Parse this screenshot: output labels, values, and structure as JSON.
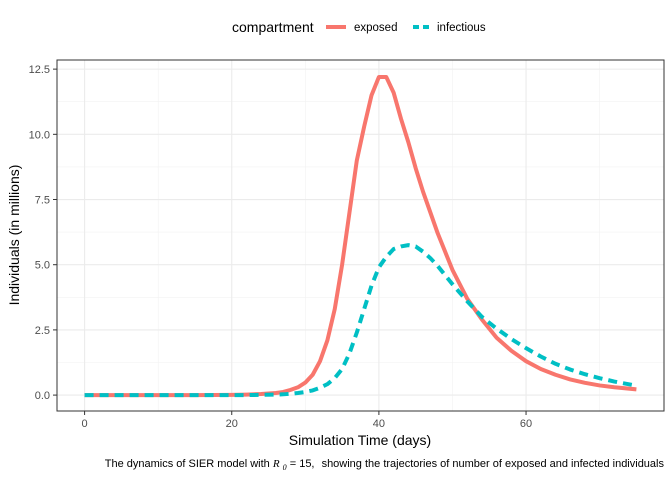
{
  "chart_data": {
    "type": "line",
    "title": "",
    "xlabel": "Simulation Time (days)",
    "ylabel": "Individuals (in millions)",
    "xlim": [
      -3.75,
      78.75
    ],
    "ylim": [
      -0.61,
      12.85
    ],
    "x_ticks": [
      0,
      20,
      40,
      60
    ],
    "x_tick_labels": [
      "0",
      "20",
      "40",
      "60"
    ],
    "y_ticks": [
      0,
      2.5,
      5,
      7.5,
      10,
      12.5
    ],
    "y_tick_labels": [
      "0.0",
      "2.5",
      "5.0",
      "7.5",
      "10.0",
      "12.5"
    ],
    "grid": true,
    "legend": {
      "title": "compartment",
      "position": "top"
    },
    "caption": {
      "prefix": "The dynamics of SIER model with ",
      "r_symbol": "R",
      "r_subscript": "0",
      "r_value": "= 15,",
      "suffix": "showing the trajectories of number of exposed and infected individuals"
    },
    "x": [
      0,
      5,
      10,
      15,
      20,
      22,
      24,
      26,
      27,
      28,
      29,
      30,
      31,
      32,
      33,
      34,
      35,
      36,
      37,
      38,
      39,
      40,
      41,
      42,
      43,
      44,
      45,
      46,
      47,
      48,
      49,
      50,
      52,
      54,
      56,
      58,
      60,
      62,
      64,
      66,
      68,
      70,
      72,
      75
    ],
    "series": [
      {
        "name": "exposed",
        "color": "#F8766D",
        "style": "solid",
        "values": [
          0,
          0,
          0,
          0,
          0.01,
          0.02,
          0.04,
          0.08,
          0.12,
          0.2,
          0.3,
          0.48,
          0.78,
          1.3,
          2.1,
          3.3,
          5.0,
          7.0,
          9.0,
          10.3,
          11.5,
          12.2,
          12.2,
          11.6,
          10.6,
          9.7,
          8.7,
          7.8,
          7.0,
          6.2,
          5.5,
          4.8,
          3.7,
          2.9,
          2.2,
          1.7,
          1.3,
          1.0,
          0.78,
          0.6,
          0.47,
          0.37,
          0.3,
          0.22
        ]
      },
      {
        "name": "infectious",
        "color": "#00BFC4",
        "style": "dashed",
        "values": [
          0,
          0,
          0,
          0,
          0,
          0,
          0.01,
          0.02,
          0.03,
          0.05,
          0.08,
          0.12,
          0.18,
          0.28,
          0.42,
          0.65,
          1.0,
          1.6,
          2.4,
          3.3,
          4.2,
          4.9,
          5.3,
          5.6,
          5.7,
          5.75,
          5.7,
          5.5,
          5.25,
          4.95,
          4.6,
          4.25,
          3.6,
          3.0,
          2.55,
          2.15,
          1.8,
          1.48,
          1.2,
          0.98,
          0.8,
          0.65,
          0.52,
          0.36
        ]
      }
    ]
  }
}
